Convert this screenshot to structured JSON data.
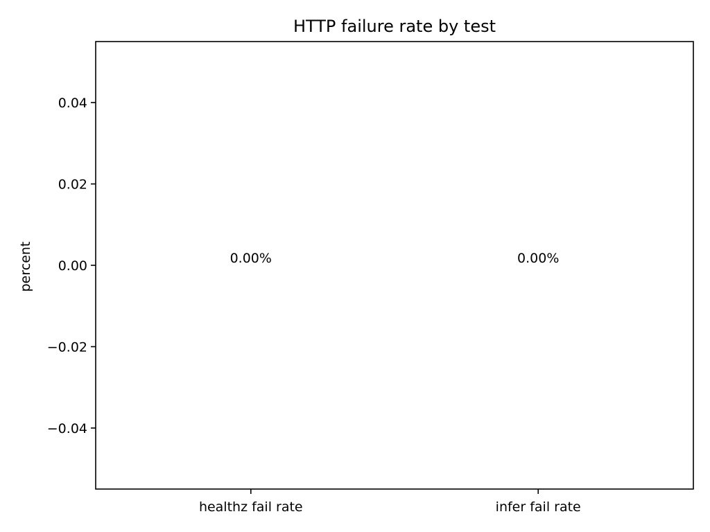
{
  "chart_data": {
    "type": "bar",
    "title": "HTTP failure rate by test",
    "xlabel": "",
    "ylabel": "percent",
    "categories": [
      "healthz fail rate",
      "infer fail rate"
    ],
    "values": [
      0.0,
      0.0
    ],
    "data_labels": [
      "0.00%",
      "0.00%"
    ],
    "ylim": [
      -0.055,
      0.055
    ],
    "yticks": [
      -0.04,
      -0.02,
      0.0,
      0.02,
      0.04
    ],
    "ytick_labels": [
      "−0.04",
      "−0.02",
      "0.00",
      "0.02",
      "0.04"
    ],
    "grid": false,
    "legend": "none"
  }
}
